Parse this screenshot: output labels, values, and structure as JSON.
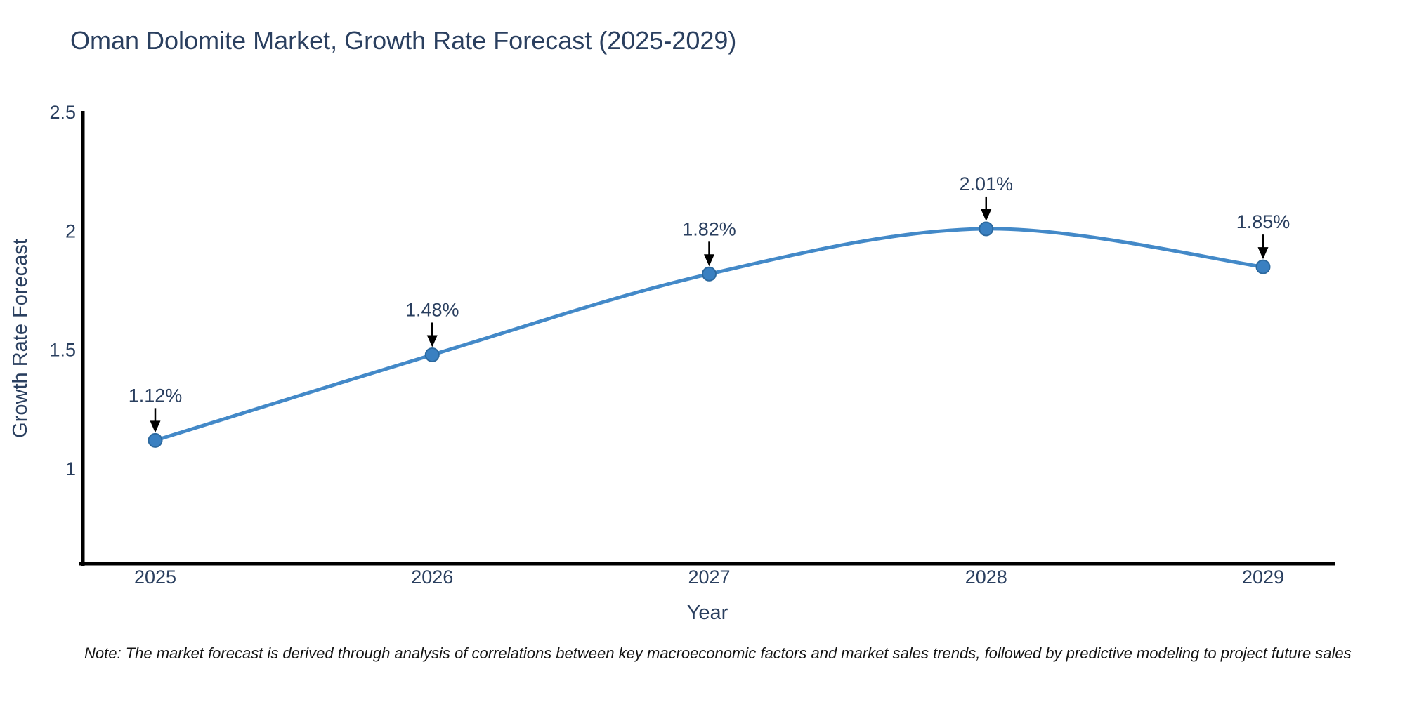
{
  "chart": {
    "note": "Note: The market forecast is derived through analysis of correlations between key macroeconomic factors and market sales trends, followed by predictive modeling to project future sales"
  },
  "chart_data": {
    "type": "line",
    "title": "Oman Dolomite Market, Growth Rate Forecast (2025-2029)",
    "xlabel": "Year",
    "ylabel": "Growth Rate Forecast",
    "x": [
      2025,
      2026,
      2027,
      2028,
      2029
    ],
    "xtick_labels": [
      "2025",
      "2026",
      "2027",
      "2028",
      "2029"
    ],
    "values": [
      1.12,
      1.48,
      1.82,
      2.01,
      1.85
    ],
    "point_labels": [
      "1.12%",
      "1.48%",
      "1.82%",
      "2.01%",
      "1.85%"
    ],
    "yticks": [
      1,
      1.5,
      2,
      2.5
    ],
    "ytick_labels": [
      "1",
      "1.5",
      "2",
      "2.5"
    ],
    "ylim": [
      0.6,
      2.5
    ],
    "grid": false,
    "legend": "none",
    "line_shape": "spline",
    "colors": {
      "line": "#4389c8",
      "marker_fill": "#3a80c1",
      "marker_edge": "#2c699f",
      "arrow": "#000000",
      "axis_line": "#000000",
      "text": "#2a3f5f",
      "note_text": "#141414",
      "background": "#ffffff"
    }
  }
}
